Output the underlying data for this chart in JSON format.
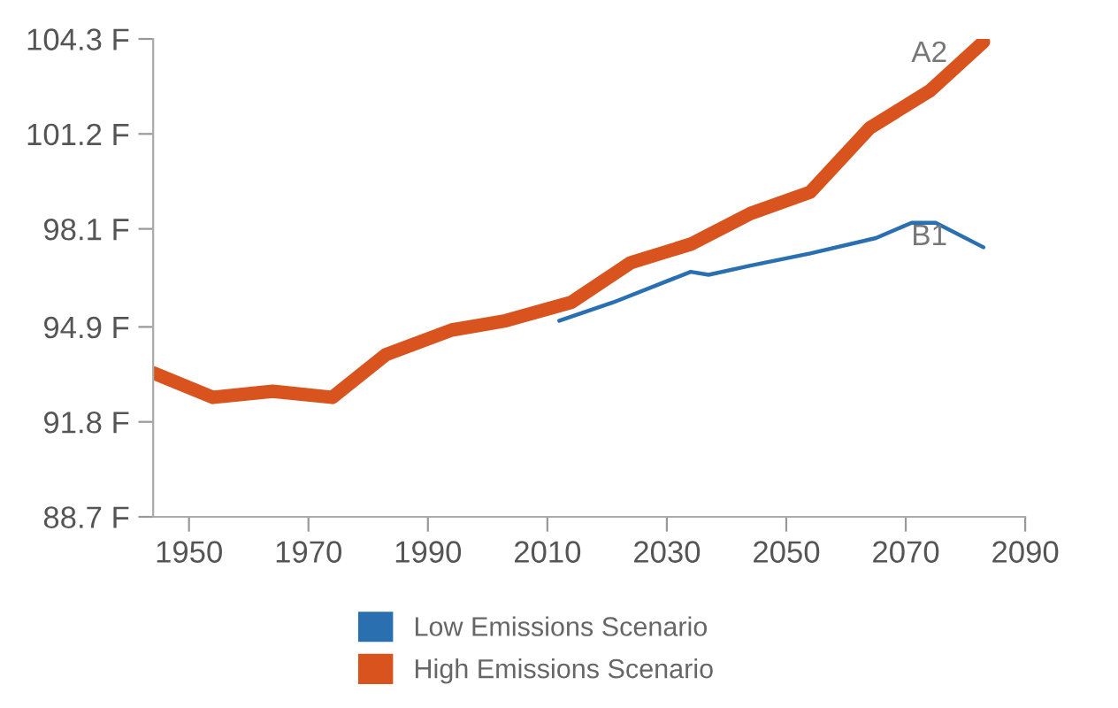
{
  "chart_data": {
    "type": "line",
    "xlim": [
      1944,
      2090
    ],
    "xticks": [
      1950,
      1970,
      1990,
      2010,
      2030,
      2050,
      2070,
      2090
    ],
    "ylim": [
      88.7,
      104.3
    ],
    "yticks": [
      {
        "value": 88.7,
        "label": "88.7 F"
      },
      {
        "value": 91.8,
        "label": "91.8 F"
      },
      {
        "value": 94.9,
        "label": "94.9 F"
      },
      {
        "value": 98.1,
        "label": "98.1 F"
      },
      {
        "value": 101.2,
        "label": "101.2 F"
      },
      {
        "value": 104.3,
        "label": "104.3 F"
      }
    ],
    "grid": false,
    "legend": "bottom",
    "marker": "none",
    "line_style": "solid",
    "series": [
      {
        "name": "Low Emissions Scenario",
        "color": "#2a6fb0",
        "x": [
          2012,
          2021,
          2034,
          2037,
          2044,
          2054,
          2065,
          2071,
          2075,
          2083
        ],
        "values": [
          95.1,
          95.7,
          96.7,
          96.6,
          96.9,
          97.3,
          97.8,
          98.3,
          98.3,
          97.5
        ]
      },
      {
        "name": "High Emissions Scenario",
        "color": "#d9531e",
        "x": [
          1944,
          1954,
          1964,
          1974,
          1983,
          1994,
          2003,
          2014,
          2024,
          2034,
          2044,
          2054,
          2064,
          2074,
          2083
        ],
        "values": [
          93.4,
          92.6,
          92.8,
          92.6,
          94.0,
          94.8,
          95.1,
          95.7,
          97.0,
          97.6,
          98.6,
          99.3,
          101.4,
          102.6,
          104.2
        ]
      }
    ],
    "annotations": [
      "A2",
      "B1"
    ]
  }
}
